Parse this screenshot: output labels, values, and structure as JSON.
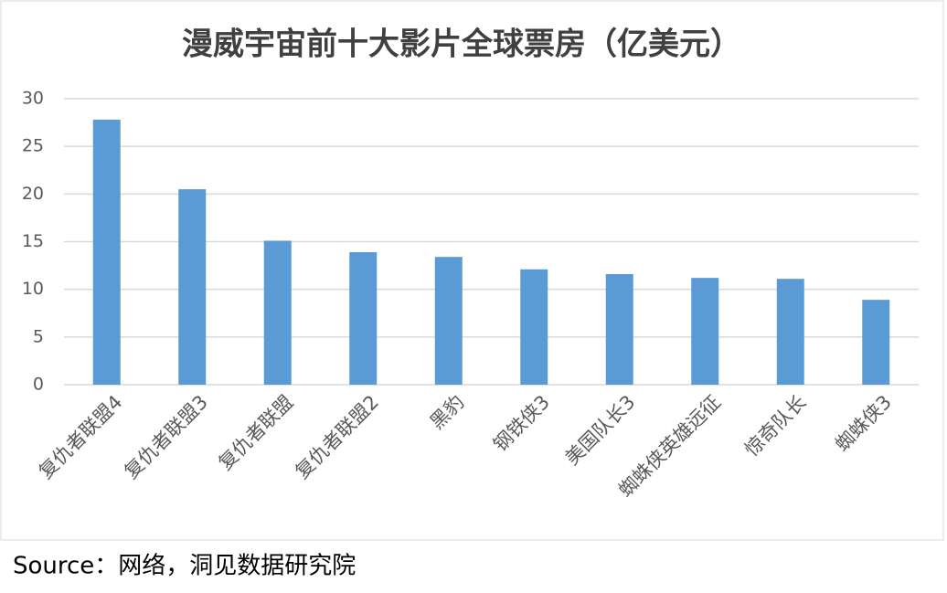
{
  "chart_data": {
    "type": "bar",
    "title": "漫威宇宙前十大影片全球票房（亿美元）",
    "categories": [
      "复仇者联盟4",
      "复仇者联盟3",
      "复仇者联盟",
      "复仇者联盟2",
      "黑豹",
      "钢铁侠3",
      "美国队长3",
      "蜘蛛侠英雄远征",
      "惊奇队长",
      "蜘蛛侠3"
    ],
    "values": [
      27.8,
      20.5,
      15.1,
      13.9,
      13.4,
      12.1,
      11.6,
      11.2,
      11.1,
      8.9
    ],
    "color": "#5b9bd5",
    "ylim": [
      0,
      30
    ],
    "yticks": [
      0,
      5,
      10,
      15,
      20,
      25,
      30
    ],
    "grid": true
  },
  "source": "Source：网络，洞见数据研究院"
}
